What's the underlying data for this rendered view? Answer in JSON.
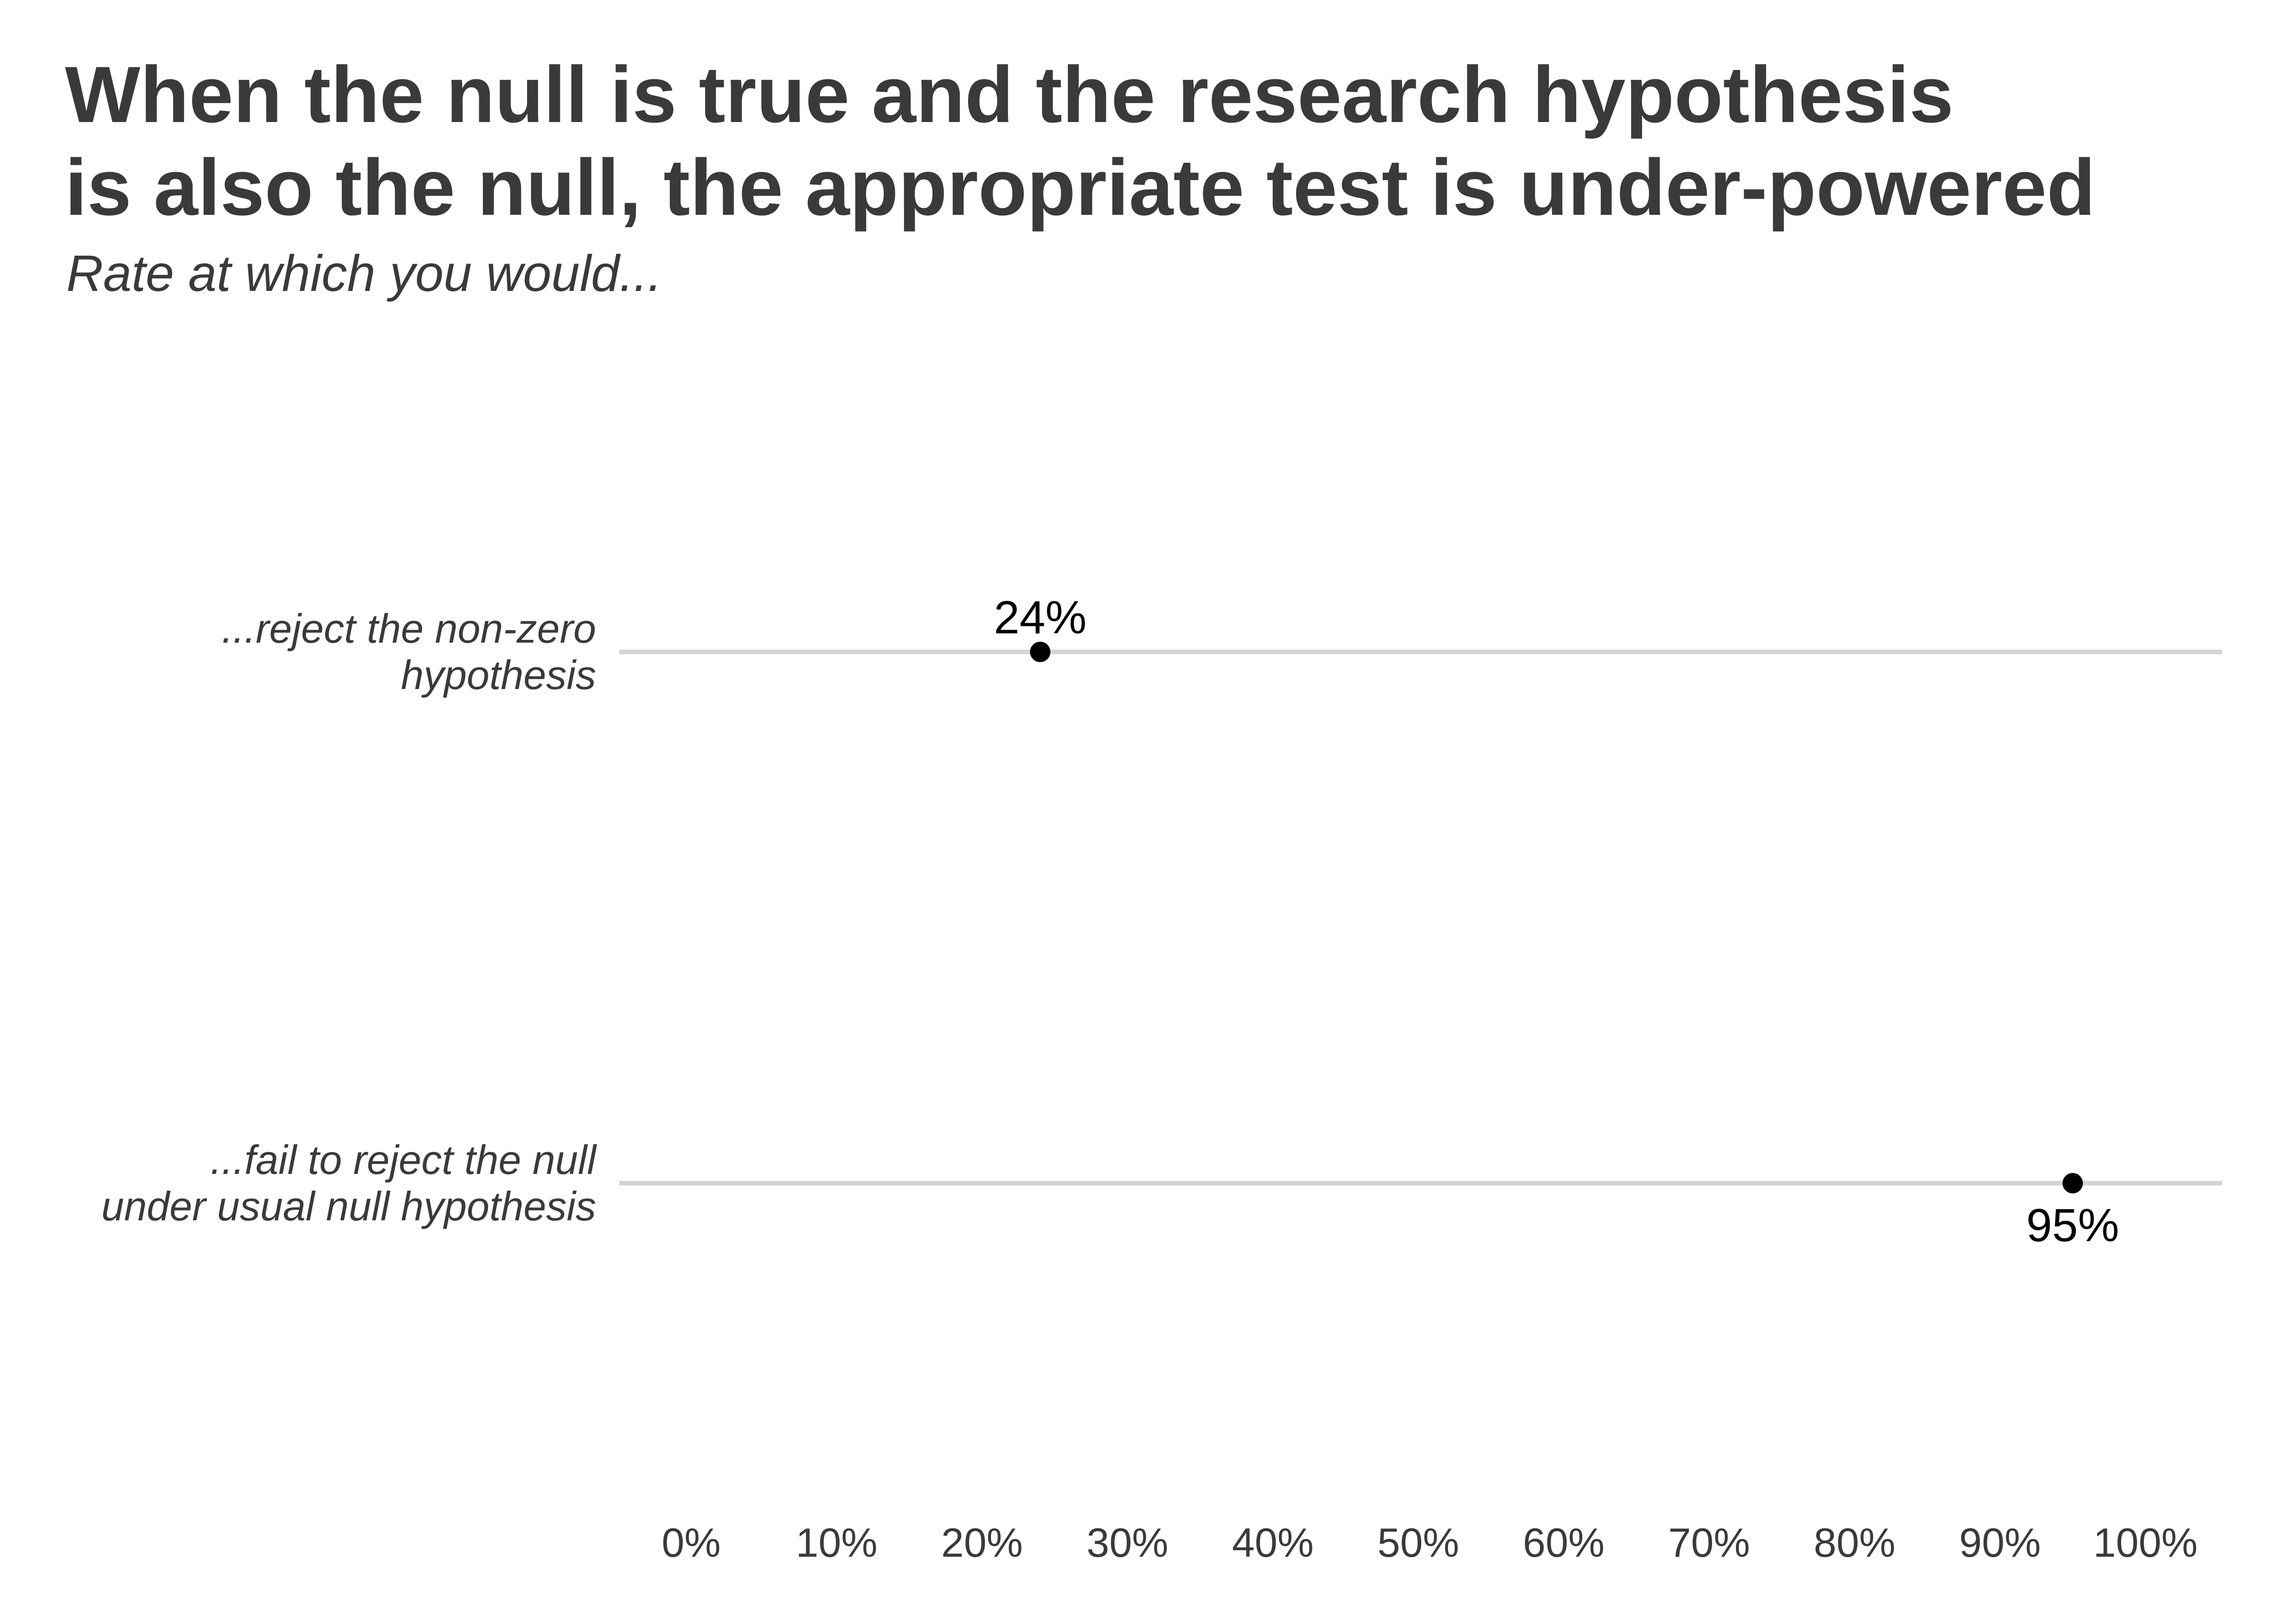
{
  "chart_data": {
    "type": "scatter",
    "title_lines": [
      "When the null is true and the research hypothesis",
      "is also the null, the appropriate test is under-powered"
    ],
    "subtitle": "Rate at which you would...",
    "xlim": [
      0,
      1
    ],
    "x_ticks": [
      0,
      0.1,
      0.2,
      0.3,
      0.4,
      0.5,
      0.6,
      0.7,
      0.8,
      0.9,
      1.0
    ],
    "x_tick_labels": [
      "0%",
      "10%",
      "20%",
      "30%",
      "40%",
      "50%",
      "60%",
      "70%",
      "80%",
      "90%",
      "100%"
    ],
    "categories": [
      {
        "label_lines": [
          "...reject the non-zero",
          "hypothesis"
        ],
        "value": 0.24,
        "value_label": "24%",
        "label_position": "above"
      },
      {
        "label_lines": [
          "...fail to reject the null",
          "under usual null hypothesis"
        ],
        "value": 0.95,
        "value_label": "95%",
        "label_position": "below"
      }
    ],
    "grid": "horizontal lines per category",
    "colors": {
      "point": "#000000",
      "gridline": "#d4d4d4",
      "text": "#3a3a3a"
    }
  }
}
